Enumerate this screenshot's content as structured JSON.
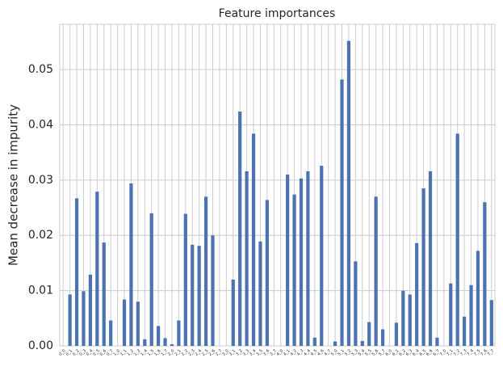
{
  "chart_data": {
    "type": "bar",
    "title": "Feature importances",
    "y_label": "Mean decrease in impurity",
    "categories": [
      "0_0",
      "0_1",
      "0_2",
      "0_3",
      "0_4",
      "0_5",
      "0_6",
      "0_7",
      "1_0",
      "1_1",
      "1_2",
      "1_3",
      "1_4",
      "1_5",
      "1_6",
      "1_7",
      "2_0",
      "2_1",
      "2_2",
      "2_3",
      "2_4",
      "2_5",
      "2_6",
      "2_7",
      "3_0",
      "3_1",
      "3_2",
      "3_3",
      "3_4",
      "3_5",
      "3_6",
      "3_7",
      "4_0",
      "4_1",
      "4_2",
      "4_3",
      "4_4",
      "4_5",
      "4_6",
      "4_7",
      "5_0",
      "5_1",
      "5_2",
      "5_3",
      "5_4",
      "5_5",
      "5_6",
      "5_7",
      "6_0",
      "6_1",
      "6_2",
      "6_3",
      "6_4",
      "6_5",
      "6_6",
      "6_7",
      "7_0",
      "7_1",
      "7_2",
      "7_3",
      "7_4",
      "7_5",
      "7_6",
      "7_7"
    ],
    "values": [
      0,
      0.0093,
      0.0267,
      0.0099,
      0.0129,
      0.0279,
      0.0187,
      0.0046,
      0,
      0.0084,
      0.0294,
      0.008,
      0.0012,
      0.024,
      0.0036,
      0.0014,
      0.0003,
      0.0046,
      0.0239,
      0.0183,
      0.0181,
      0.027,
      0.02,
      0,
      0,
      0.012,
      0.0424,
      0.0316,
      0.0384,
      0.0189,
      0.0264,
      0,
      0,
      0.031,
      0.0274,
      0.0303,
      0.0316,
      0.0015,
      0.0326,
      0,
      0.0008,
      0.0482,
      0.0552,
      0.0153,
      0.0009,
      0.0043,
      0.027,
      0.003,
      0,
      0.0042,
      0.01,
      0.0093,
      0.0186,
      0.0285,
      0.0316,
      0.0015,
      0,
      0.0113,
      0.0384,
      0.0053,
      0.011,
      0.0172,
      0.026,
      0.0083
    ],
    "color": "#4c72b0",
    "ylim": [
      0,
      0.0582
    ],
    "yticks": [
      {
        "value": 0,
        "label": "0.00"
      },
      {
        "value": 0.01,
        "label": "0.01"
      },
      {
        "value": 0.02,
        "label": "0.02"
      },
      {
        "value": 0.03,
        "label": "0.03"
      },
      {
        "value": 0.04,
        "label": "0.04"
      },
      {
        "value": 0.05,
        "label": "0.05"
      }
    ],
    "grid": true
  }
}
